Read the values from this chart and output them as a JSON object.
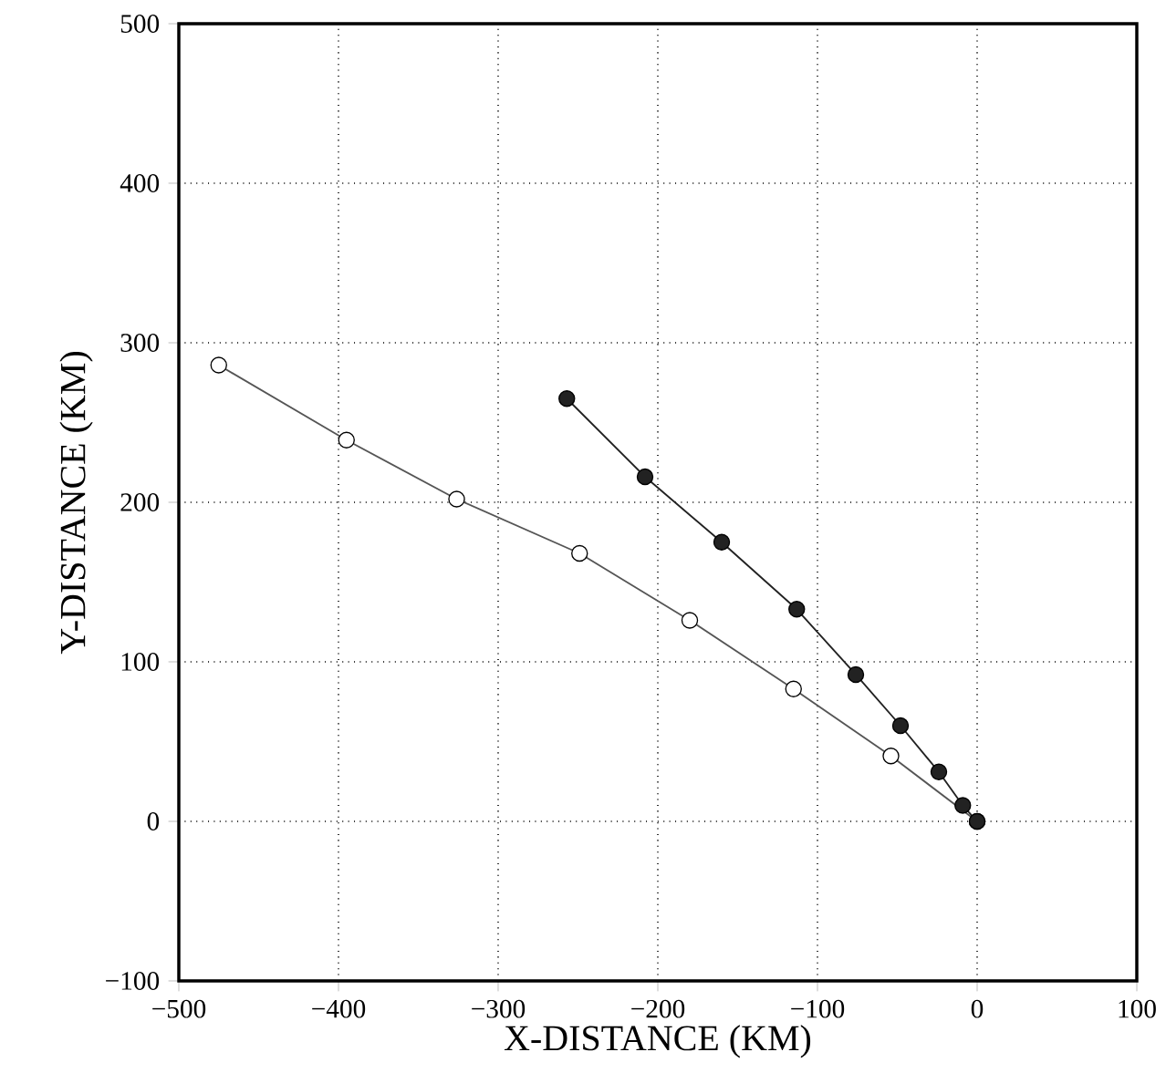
{
  "chart_data": {
    "type": "line",
    "xlabel": "X-DISTANCE (KM)",
    "ylabel": "Y-DISTANCE (KM)",
    "xlim": [
      -500,
      100
    ],
    "ylim": [
      -100,
      500
    ],
    "xticks": [
      {
        "value": -500,
        "label": "−500"
      },
      {
        "value": -400,
        "label": "−400"
      },
      {
        "value": -300,
        "label": "−300"
      },
      {
        "value": -200,
        "label": "−200"
      },
      {
        "value": -100,
        "label": "−100"
      },
      0,
      100
    ],
    "yticks": [
      {
        "value": -100,
        "label": "−100"
      },
      0,
      100,
      200,
      300,
      400,
      500
    ],
    "grid": true,
    "marker": "circle",
    "line_style": "solid",
    "series": [
      {
        "color": "#555555",
        "colors": [
          "#ffffff",
          "#ffffff",
          "#ffffff",
          "#ffffff",
          "#ffffff",
          "#ffffff",
          "#ffffff",
          "#ffffff",
          "#ffffff"
        ],
        "x": [
          null,
          -475,
          -395,
          -326,
          -249,
          -180,
          -115,
          -54,
          0
        ],
        "values": [
          null,
          286,
          239,
          202,
          168,
          126,
          83,
          41,
          0
        ]
      },
      {
        "color": "#222222",
        "colors": [
          "#222222",
          "#222222",
          "#222222",
          "#222222",
          "#222222",
          "#222222",
          "#222222",
          "#222222",
          "#222222"
        ],
        "x": [
          -257,
          -208,
          -160,
          -113,
          -76,
          -48,
          -24,
          -9,
          0
        ],
        "values": [
          265,
          216,
          175,
          133,
          92,
          60,
          31,
          10,
          0
        ]
      }
    ]
  }
}
